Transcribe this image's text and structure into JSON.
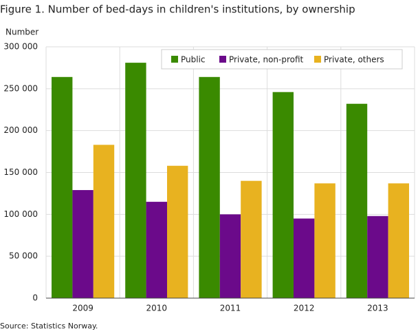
{
  "chart_data": {
    "type": "bar",
    "title": "Figure 1. Number of bed-days in children's institutions, by ownership",
    "y_label": "Number",
    "source": "Source: Statistics Norway.",
    "categories": [
      "2009",
      "2010",
      "2011",
      "2012",
      "2013"
    ],
    "series": [
      {
        "name": "Public",
        "color": "#3a8a00",
        "values": [
          264000,
          281000,
          264000,
          246000,
          232000
        ]
      },
      {
        "name": "Private, non-profit",
        "color": "#6b0a8a",
        "values": [
          129000,
          115000,
          100000,
          95000,
          98000
        ]
      },
      {
        "name": "Private, others",
        "color": "#e8b220",
        "values": [
          183000,
          158000,
          140000,
          137000,
          137000
        ]
      }
    ],
    "ylim": [
      0,
      300000
    ],
    "yticks": [
      0,
      {
        "value": 50000,
        "label": "50 000"
      },
      {
        "value": 100000,
        "label": "100 000"
      },
      {
        "value": 150000,
        "label": "150 000"
      },
      {
        "value": 200000,
        "label": "200 000"
      },
      {
        "value": 250000,
        "label": "250 000"
      },
      {
        "value": 300000,
        "label": "300 000"
      }
    ],
    "grid": true,
    "legend": "top-right"
  }
}
